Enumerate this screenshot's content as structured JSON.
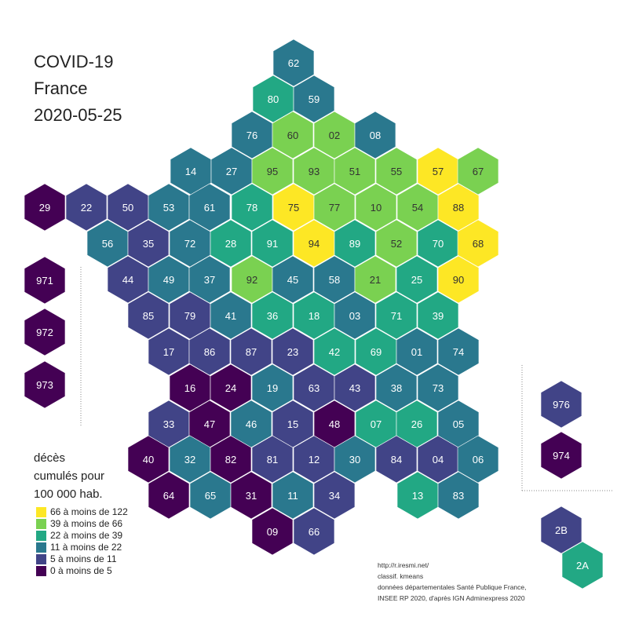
{
  "title": {
    "line1": "COVID-19",
    "line2": "France",
    "line3": "2020-05-25"
  },
  "legend": {
    "title_line1": "décès",
    "title_line2": "cumulés pour",
    "title_line3": "100 000 hab.",
    "classes": [
      {
        "label": "66 à moins de 122",
        "color": "#fde725"
      },
      {
        "label": "39 à moins de 66",
        "color": "#7ad151"
      },
      {
        "label": "22 à moins de 39",
        "color": "#22a884"
      },
      {
        "label": "11 à moins de 22",
        "color": "#2a788e"
      },
      {
        "label": "5 à moins de 11",
        "color": "#414487"
      },
      {
        "label": "0 à moins de 5",
        "color": "#440154"
      }
    ]
  },
  "source": {
    "line1": "http://r.iresmi.net/",
    "line2": "classif. kmeans",
    "line3": "données départementales Santé Publique France,",
    "line4": "INSEE RP 2020, d'après IGN Adminexpress 2020"
  },
  "departments": [
    {
      "code": "62",
      "class": 3
    },
    {
      "code": "80",
      "class": 2
    },
    {
      "code": "59",
      "class": 3
    },
    {
      "code": "76",
      "class": 3
    },
    {
      "code": "60",
      "class": 1
    },
    {
      "code": "02",
      "class": 1
    },
    {
      "code": "08",
      "class": 3
    },
    {
      "code": "14",
      "class": 3
    },
    {
      "code": "27",
      "class": 3
    },
    {
      "code": "95",
      "class": 1
    },
    {
      "code": "93",
      "class": 1
    },
    {
      "code": "51",
      "class": 1
    },
    {
      "code": "55",
      "class": 1
    },
    {
      "code": "57",
      "class": 0
    },
    {
      "code": "67",
      "class": 1
    },
    {
      "code": "29",
      "class": 5
    },
    {
      "code": "22",
      "class": 4
    },
    {
      "code": "50",
      "class": 4
    },
    {
      "code": "53",
      "class": 3
    },
    {
      "code": "61",
      "class": 3
    },
    {
      "code": "78",
      "class": 2
    },
    {
      "code": "75",
      "class": 0
    },
    {
      "code": "77",
      "class": 1
    },
    {
      "code": "10",
      "class": 1
    },
    {
      "code": "54",
      "class": 1
    },
    {
      "code": "88",
      "class": 0
    },
    {
      "code": "56",
      "class": 3
    },
    {
      "code": "35",
      "class": 4
    },
    {
      "code": "72",
      "class": 3
    },
    {
      "code": "28",
      "class": 2
    },
    {
      "code": "91",
      "class": 2
    },
    {
      "code": "94",
      "class": 0
    },
    {
      "code": "89",
      "class": 2
    },
    {
      "code": "52",
      "class": 1
    },
    {
      "code": "70",
      "class": 2
    },
    {
      "code": "68",
      "class": 0
    },
    {
      "code": "44",
      "class": 4
    },
    {
      "code": "49",
      "class": 3
    },
    {
      "code": "37",
      "class": 3
    },
    {
      "code": "92",
      "class": 1
    },
    {
      "code": "45",
      "class": 3
    },
    {
      "code": "58",
      "class": 3
    },
    {
      "code": "21",
      "class": 1
    },
    {
      "code": "25",
      "class": 2
    },
    {
      "code": "90",
      "class": 0
    },
    {
      "code": "85",
      "class": 4
    },
    {
      "code": "79",
      "class": 4
    },
    {
      "code": "41",
      "class": 3
    },
    {
      "code": "36",
      "class": 2
    },
    {
      "code": "18",
      "class": 2
    },
    {
      "code": "03",
      "class": 3
    },
    {
      "code": "71",
      "class": 2
    },
    {
      "code": "39",
      "class": 2
    },
    {
      "code": "17",
      "class": 4
    },
    {
      "code": "86",
      "class": 4
    },
    {
      "code": "87",
      "class": 4
    },
    {
      "code": "23",
      "class": 4
    },
    {
      "code": "42",
      "class": 2
    },
    {
      "code": "69",
      "class": 2
    },
    {
      "code": "01",
      "class": 3
    },
    {
      "code": "74",
      "class": 3
    },
    {
      "code": "16",
      "class": 5
    },
    {
      "code": "24",
      "class": 5
    },
    {
      "code": "19",
      "class": 3
    },
    {
      "code": "63",
      "class": 4
    },
    {
      "code": "43",
      "class": 4
    },
    {
      "code": "38",
      "class": 3
    },
    {
      "code": "73",
      "class": 3
    },
    {
      "code": "33",
      "class": 4
    },
    {
      "code": "47",
      "class": 5
    },
    {
      "code": "46",
      "class": 3
    },
    {
      "code": "15",
      "class": 4
    },
    {
      "code": "48",
      "class": 5
    },
    {
      "code": "07",
      "class": 2
    },
    {
      "code": "26",
      "class": 2
    },
    {
      "code": "05",
      "class": 3
    },
    {
      "code": "40",
      "class": 5
    },
    {
      "code": "32",
      "class": 3
    },
    {
      "code": "82",
      "class": 5
    },
    {
      "code": "81",
      "class": 4
    },
    {
      "code": "12",
      "class": 4
    },
    {
      "code": "30",
      "class": 3
    },
    {
      "code": "84",
      "class": 4
    },
    {
      "code": "04",
      "class": 4
    },
    {
      "code": "06",
      "class": 3
    },
    {
      "code": "64",
      "class": 5
    },
    {
      "code": "65",
      "class": 3
    },
    {
      "code": "31",
      "class": 5
    },
    {
      "code": "11",
      "class": 3
    },
    {
      "code": "34",
      "class": 4
    },
    {
      "code": "13",
      "class": 2
    },
    {
      "code": "83",
      "class": 3
    },
    {
      "code": "09",
      "class": 5
    },
    {
      "code": "66",
      "class": 4
    },
    {
      "code": "971",
      "class": 5
    },
    {
      "code": "972",
      "class": 5
    },
    {
      "code": "973",
      "class": 5
    },
    {
      "code": "976",
      "class": 4
    },
    {
      "code": "974",
      "class": 5
    },
    {
      "code": "2B",
      "class": 4
    },
    {
      "code": "2A",
      "class": 2
    }
  ]
}
